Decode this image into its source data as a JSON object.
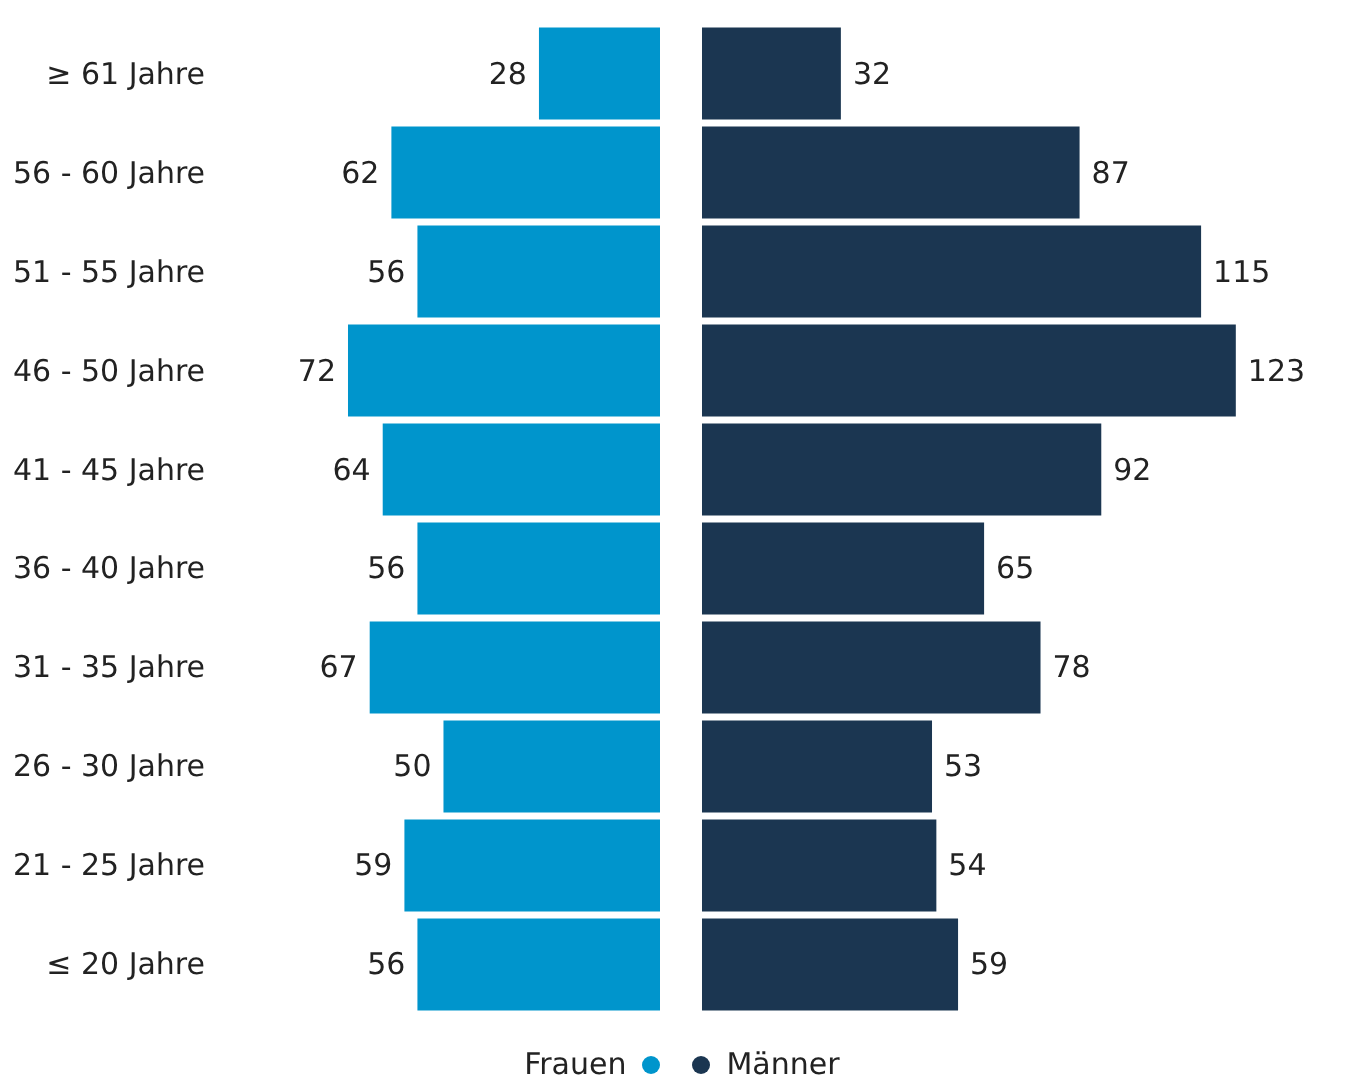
{
  "chart_data": [
    {
      "type": "bar",
      "orientation": "horizontal",
      "categories": [
        "≥ 61 Jahre",
        "56 - 60 Jahre",
        "51 - 55 Jahre",
        "46 - 50 Jahre",
        "41 - 45 Jahre",
        "36 - 40 Jahre",
        "31 - 35 Jahre",
        "26 - 30 Jahre",
        "21 - 25 Jahre",
        "≤ 20 Jahre"
      ],
      "series": [
        {
          "name": "Frauen",
          "color": "#0095cc",
          "values": [
            28,
            62,
            56,
            72,
            64,
            56,
            67,
            50,
            59,
            56
          ]
        }
      ],
      "data_labels": true,
      "legend": "bottom"
    },
    {
      "type": "bar",
      "orientation": "horizontal",
      "categories": [
        null,
        null,
        null,
        null,
        null,
        null,
        null,
        null,
        null,
        null
      ],
      "series": [
        {
          "name": "Männer",
          "color": "#1b3651",
          "values": [
            32,
            87,
            115,
            123,
            92,
            65,
            78,
            53,
            54,
            59
          ]
        }
      ],
      "data_labels": true,
      "legend": "bottom",
      "tick_labels": false
    }
  ]
}
